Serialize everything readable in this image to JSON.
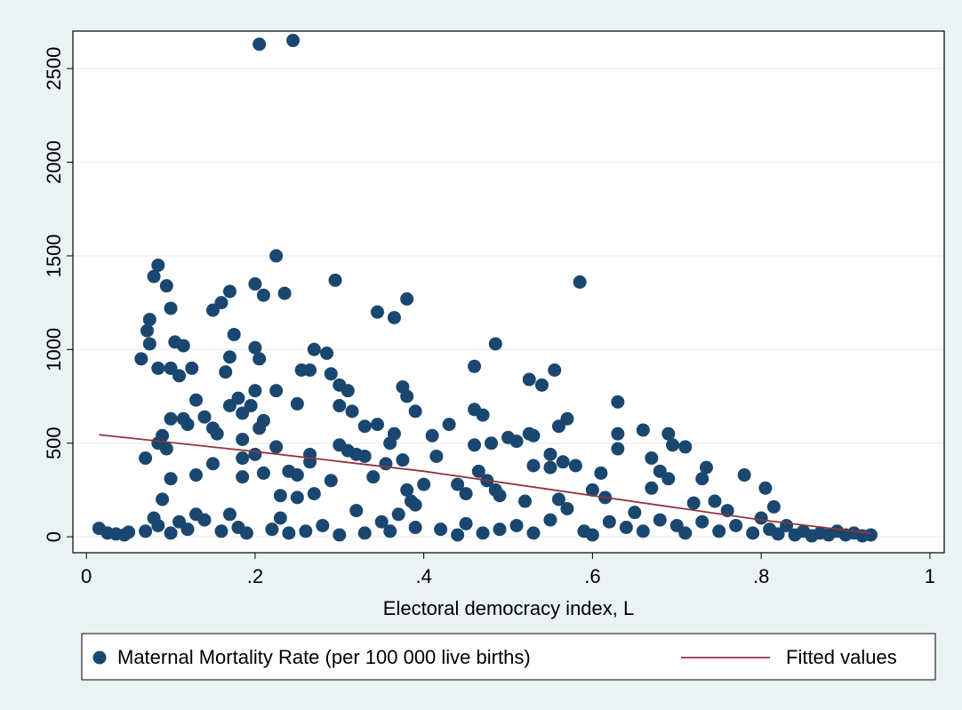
{
  "chart_data": {
    "type": "scatter",
    "xlabel": "Electoral democracy index, L",
    "xlim": [
      -0.016,
      1.017
    ],
    "ylim": [
      -85,
      2700
    ],
    "xticks": [
      0,
      {
        "value": 0.2,
        "label": ".2"
      },
      {
        "value": 0.4,
        "label": ".4"
      },
      {
        "value": 0.6,
        "label": ".6"
      },
      {
        "value": 0.8,
        "label": ".8"
      },
      1
    ],
    "yticks": [
      0,
      500,
      1000,
      1500,
      2000,
      2500
    ],
    "grid": true,
    "series": [
      {
        "name": "Maternal Mortality Rate (per 100 000 live births)",
        "type": "scatter",
        "color": "#1a476f",
        "x": [
          0.205,
          0.245,
          0.225,
          0.085,
          0.08,
          0.095,
          0.1,
          0.075,
          0.072,
          0.075,
          0.065,
          0.085,
          0.1,
          0.105,
          0.115,
          0.11,
          0.125,
          0.2,
          0.21,
          0.235,
          0.17,
          0.16,
          0.15,
          0.175,
          0.2,
          0.205,
          0.17,
          0.165,
          0.295,
          0.345,
          0.365,
          0.38,
          0.585,
          0.485,
          0.27,
          0.285,
          0.265,
          0.255,
          0.29,
          0.3,
          0.31,
          0.3,
          0.225,
          0.25,
          0.375,
          0.38,
          0.39,
          0.46,
          0.525,
          0.54,
          0.555,
          0.46,
          0.47,
          0.2,
          0.18,
          0.17,
          0.185,
          0.195,
          0.21,
          0.13,
          0.115,
          0.1,
          0.12,
          0.14,
          0.15,
          0.155,
          0.09,
          0.095,
          0.085,
          0.07,
          0.1,
          0.09,
          0.13,
          0.15,
          0.185,
          0.185,
          0.2,
          0.205,
          0.185,
          0.21,
          0.225,
          0.24,
          0.25,
          0.265,
          0.265,
          0.23,
          0.25,
          0.27,
          0.29,
          0.3,
          0.31,
          0.32,
          0.315,
          0.33,
          0.345,
          0.33,
          0.34,
          0.355,
          0.36,
          0.365,
          0.375,
          0.38,
          0.385,
          0.39,
          0.41,
          0.415,
          0.43,
          0.44,
          0.4,
          0.45,
          0.46,
          0.465,
          0.475,
          0.48,
          0.485,
          0.49,
          0.5,
          0.51,
          0.525,
          0.53,
          0.53,
          0.55,
          0.56,
          0.565,
          0.57,
          0.58,
          0.52,
          0.55,
          0.56,
          0.6,
          0.61,
          0.615,
          0.63,
          0.63,
          0.63,
          0.66,
          0.67,
          0.68,
          0.67,
          0.69,
          0.695,
          0.71,
          0.69,
          0.735,
          0.73,
          0.72,
          0.745,
          0.78,
          0.805,
          0.815,
          0.76,
          0.8,
          0.015,
          0.025,
          0.035,
          0.045,
          0.05,
          0.07,
          0.08,
          0.085,
          0.1,
          0.11,
          0.12,
          0.13,
          0.14,
          0.16,
          0.17,
          0.18,
          0.19,
          0.22,
          0.23,
          0.24,
          0.26,
          0.28,
          0.3,
          0.32,
          0.33,
          0.35,
          0.36,
          0.37,
          0.39,
          0.42,
          0.44,
          0.45,
          0.47,
          0.49,
          0.51,
          0.53,
          0.55,
          0.57,
          0.59,
          0.6,
          0.62,
          0.64,
          0.65,
          0.66,
          0.68,
          0.7,
          0.71,
          0.73,
          0.75,
          0.77,
          0.79,
          0.81,
          0.82,
          0.83,
          0.84,
          0.85,
          0.86,
          0.87,
          0.88,
          0.89,
          0.9,
          0.91,
          0.92,
          0.93
        ],
        "values": [
          2630,
          2650,
          1500,
          1450,
          1390,
          1340,
          1220,
          1160,
          1100,
          1030,
          950,
          900,
          900,
          1040,
          1020,
          860,
          900,
          1350,
          1290,
          1300,
          1310,
          1250,
          1210,
          1080,
          1010,
          950,
          960,
          880,
          1370,
          1200,
          1170,
          1270,
          1360,
          1030,
          1000,
          980,
          890,
          890,
          870,
          810,
          780,
          700,
          780,
          710,
          800,
          750,
          670,
          910,
          840,
          810,
          890,
          680,
          650,
          780,
          740,
          700,
          660,
          700,
          620,
          730,
          630,
          630,
          600,
          640,
          580,
          550,
          540,
          470,
          500,
          420,
          310,
          200,
          330,
          390,
          520,
          420,
          440,
          580,
          320,
          340,
          480,
          350,
          330,
          440,
          400,
          220,
          210,
          230,
          300,
          490,
          460,
          440,
          670,
          590,
          600,
          430,
          320,
          390,
          500,
          550,
          410,
          250,
          190,
          170,
          540,
          430,
          600,
          280,
          280,
          230,
          490,
          350,
          300,
          500,
          250,
          220,
          530,
          510,
          550,
          540,
          380,
          440,
          590,
          400,
          630,
          380,
          190,
          370,
          200,
          250,
          340,
          210,
          720,
          550,
          470,
          570,
          420,
          350,
          260,
          550,
          490,
          480,
          310,
          370,
          310,
          180,
          190,
          330,
          260,
          160,
          140,
          100,
          45,
          20,
          15,
          10,
          25,
          30,
          100,
          60,
          20,
          80,
          40,
          120,
          90,
          30,
          120,
          50,
          20,
          40,
          100,
          20,
          30,
          60,
          10,
          140,
          20,
          80,
          30,
          120,
          50,
          40,
          10,
          70,
          20,
          40,
          60,
          20,
          90,
          150,
          30,
          10,
          80,
          50,
          130,
          30,
          90,
          60,
          20,
          80,
          30,
          60,
          20,
          40,
          15,
          60,
          10,
          30,
          5,
          20,
          10,
          30,
          10,
          20,
          5,
          10
        ]
      },
      {
        "name": "Fitted values",
        "type": "line",
        "color": "#90353b",
        "x": [
          0.015,
          0.2,
          0.4,
          0.6,
          0.8,
          0.93
        ],
        "values": [
          545,
          455,
          350,
          220,
          90,
          19
        ]
      }
    ]
  }
}
